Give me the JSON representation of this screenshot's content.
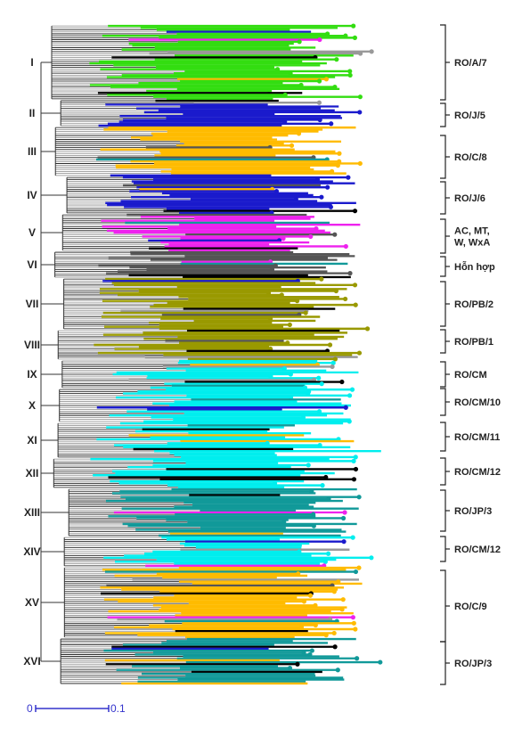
{
  "clades": [
    {
      "label": "I",
      "color": "#33dd11",
      "y0": 28,
      "y1": 112
    },
    {
      "label": "II",
      "color": "#1a1acc",
      "y0": 112,
      "y1": 142
    },
    {
      "label": "III",
      "color": "#ffbb00",
      "y0": 142,
      "y1": 198
    },
    {
      "label": "IV",
      "color": "#1a1acc",
      "y0": 198,
      "y1": 240
    },
    {
      "label": "V",
      "color": "#ee22ee",
      "y0": 240,
      "y1": 282
    },
    {
      "label": "VI",
      "color": "#555555",
      "y0": 282,
      "y1": 312
    },
    {
      "label": "VII",
      "color": "#999900",
      "y0": 312,
      "y1": 370
    },
    {
      "label": "VIII",
      "color": "#999900",
      "y0": 370,
      "y1": 404
    },
    {
      "label": "IX",
      "color": "#00eeee",
      "y0": 404,
      "y1": 436
    },
    {
      "label": "X",
      "color": "#00eeee",
      "y0": 436,
      "y1": 474
    },
    {
      "label": "XI",
      "color": "#00eeee",
      "y0": 474,
      "y1": 514
    },
    {
      "label": "XII",
      "color": "#00eeee",
      "y0": 514,
      "y1": 548
    },
    {
      "label": "XIII",
      "color": "#119999",
      "y0": 548,
      "y1": 602
    },
    {
      "label": "XIV",
      "color": "#00eeee",
      "y0": 602,
      "y1": 636
    },
    {
      "label": "XV",
      "color": "#ffbb00",
      "y0": 636,
      "y1": 716
    },
    {
      "label": "XVI",
      "color": "#119999",
      "y0": 716,
      "y1": 768
    }
  ],
  "groups": [
    {
      "lines": [
        "RO/A/7"
      ],
      "y0": 28,
      "y1": 112
    },
    {
      "lines": [
        "RO/J/5"
      ],
      "y0": 116,
      "y1": 142
    },
    {
      "lines": [
        "RO/C/8"
      ],
      "y0": 152,
      "y1": 200
    },
    {
      "lines": [
        "RO/J/6"
      ],
      "y0": 204,
      "y1": 240
    },
    {
      "lines": [
        "AC, MT,",
        "W, WxA"
      ],
      "y0": 246,
      "y1": 284
    },
    {
      "lines": [
        "Hỗn hợp"
      ],
      "y0": 288,
      "y1": 310
    },
    {
      "lines": [
        "RO/PB/2"
      ],
      "y0": 316,
      "y1": 366
    },
    {
      "lines": [
        "RO/PB/1"
      ],
      "y0": 370,
      "y1": 396
    },
    {
      "lines": [
        "RO/CM"
      ],
      "y0": 406,
      "y1": 434
    },
    {
      "lines": [
        "RO/CM/10"
      ],
      "y0": 436,
      "y1": 466
    },
    {
      "lines": [
        "RO/CM/11"
      ],
      "y0": 474,
      "y1": 506
    },
    {
      "lines": [
        "RO/CM/12"
      ],
      "y0": 514,
      "y1": 544
    },
    {
      "lines": [
        "RO/JP/3"
      ],
      "y0": 550,
      "y1": 596
    },
    {
      "lines": [
        "RO/CM/12"
      ],
      "y0": 602,
      "y1": 630
    },
    {
      "lines": [
        "RO/C/9"
      ],
      "y0": 640,
      "y1": 720
    },
    {
      "lines": [
        "RO/JP/3"
      ],
      "y0": 720,
      "y1": 768
    }
  ],
  "scale_bar": {
    "start_label": "0",
    "end_label": "0.1",
    "color": "#3333cc"
  }
}
